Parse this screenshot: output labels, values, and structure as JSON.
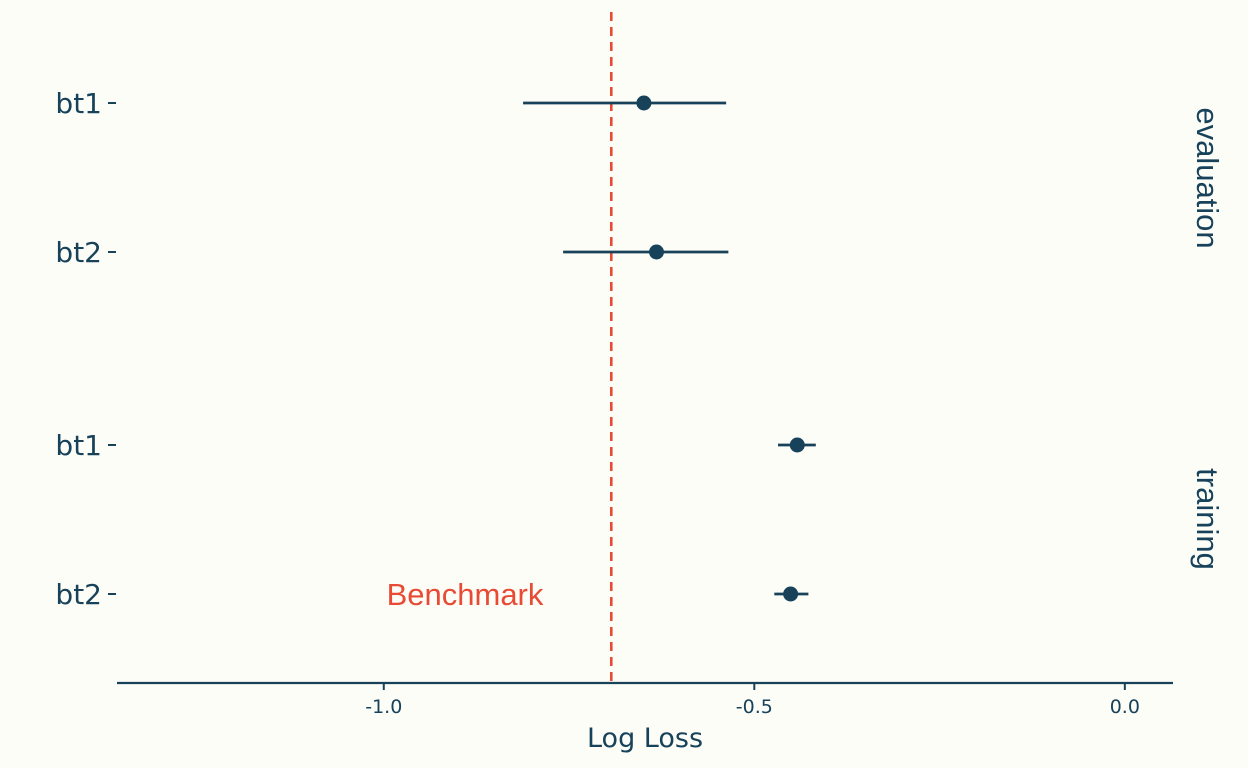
{
  "chart_data": {
    "type": "scatter",
    "xlabel": "Log Loss",
    "xlim": [
      -1.36,
      0.065
    ],
    "xticks": [
      {
        "value": -1.0,
        "label": "-1.0"
      },
      {
        "value": -0.5,
        "label": "-0.5"
      },
      {
        "value": 0.0,
        "label": "0.0"
      }
    ],
    "facets": [
      {
        "name": "evaluation",
        "points": [
          {
            "label": "bt1",
            "x": -0.649,
            "low": -0.812,
            "high": -0.538
          },
          {
            "label": "bt2",
            "x": -0.632,
            "low": -0.758,
            "high": -0.535
          }
        ]
      },
      {
        "name": "training",
        "points": [
          {
            "label": "bt1",
            "x": -0.442,
            "low": -0.468,
            "high": -0.417
          },
          {
            "label": "bt2",
            "x": -0.451,
            "low": -0.473,
            "high": -0.427
          }
        ]
      }
    ],
    "benchmark": {
      "x": -0.693,
      "label": "Benchmark"
    },
    "grid": false,
    "colors": {
      "point": "#17425a",
      "errorbar": "#17425a",
      "axis": "#17425a",
      "text": "#17425a",
      "benchmark": "#e84a34",
      "background": "#fdfdf8"
    }
  }
}
